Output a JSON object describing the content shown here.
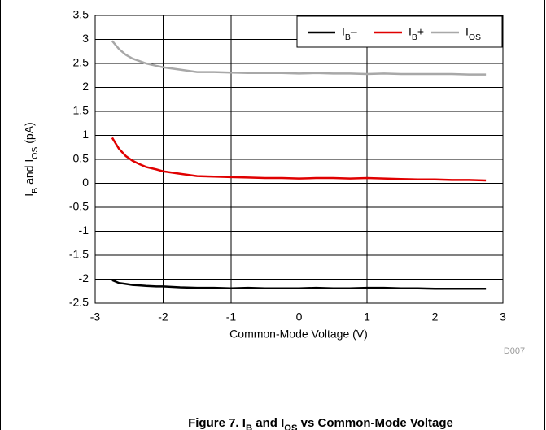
{
  "chart_data": {
    "type": "line",
    "x_label": "Common-Mode Voltage (V)",
    "y_label": "IB and IOS (pA)",
    "annotation": "D007",
    "caption": "Figure 7. IB and IOS vs Common-Mode Voltage",
    "x": [
      -2.75,
      -2.65,
      -2.55,
      -2.45,
      -2.35,
      -2.25,
      -2.1,
      -2.0,
      -1.75,
      -1.5,
      -1.25,
      -1,
      -0.75,
      -0.5,
      -0.25,
      0,
      0.25,
      0.5,
      0.75,
      1,
      1.25,
      1.5,
      1.75,
      2,
      2.25,
      2.5,
      2.75
    ],
    "series": [
      {
        "name": "IB–",
        "color": "#000000",
        "values": [
          -2.02,
          -2.08,
          -2.1,
          -2.12,
          -2.13,
          -2.14,
          -2.15,
          -2.15,
          -2.17,
          -2.18,
          -2.18,
          -2.19,
          -2.18,
          -2.19,
          -2.19,
          -2.19,
          -2.18,
          -2.19,
          -2.19,
          -2.18,
          -2.18,
          -2.19,
          -2.19,
          -2.2,
          -2.2,
          -2.2,
          -2.2
        ]
      },
      {
        "name": "IB+",
        "color": "#e00000",
        "values": [
          0.95,
          0.72,
          0.57,
          0.47,
          0.4,
          0.34,
          0.29,
          0.25,
          0.2,
          0.15,
          0.14,
          0.13,
          0.12,
          0.11,
          0.11,
          0.1,
          0.11,
          0.11,
          0.1,
          0.11,
          0.1,
          0.09,
          0.08,
          0.08,
          0.07,
          0.07,
          0.06
        ]
      },
      {
        "name": "IOS",
        "color": "#a8a8a8",
        "values": [
          2.97,
          2.8,
          2.68,
          2.6,
          2.55,
          2.5,
          2.45,
          2.42,
          2.37,
          2.32,
          2.32,
          2.31,
          2.3,
          2.3,
          2.3,
          2.29,
          2.3,
          2.29,
          2.29,
          2.28,
          2.29,
          2.28,
          2.28,
          2.28,
          2.28,
          2.27,
          2.27
        ]
      }
    ],
    "xlim": [
      -3,
      3
    ],
    "xticks": [
      -3,
      -2,
      -1,
      0,
      1,
      2,
      3
    ],
    "ylim": [
      -2.5,
      3.5
    ],
    "yticks": [
      3.5,
      3,
      2.5,
      2,
      1.5,
      1,
      0.5,
      0,
      -0.5,
      -1,
      -1.5,
      -2,
      -2.5
    ],
    "grid": true,
    "legend": "top-right"
  }
}
